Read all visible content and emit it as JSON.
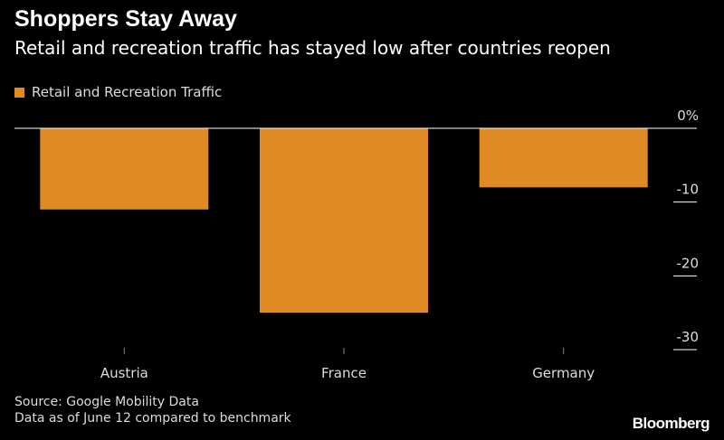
{
  "title": "Shoppers Stay Away",
  "subtitle": "Retail and recreation traffic has stayed low after countries reopen",
  "colors": {
    "bar": "#e08a24",
    "background": "#000000",
    "zero_line": "#ffffff",
    "tick_line": "#ffffff"
  },
  "chart_data": {
    "type": "bar",
    "categories": [
      "Austria",
      "France",
      "Germany"
    ],
    "series": [
      {
        "name": "Retail and Recreation Traffic",
        "values": [
          -11,
          -25,
          -8
        ]
      }
    ],
    "ylim": [
      -30,
      0
    ],
    "yticks": [
      0,
      -10,
      -20,
      -30
    ],
    "ytick_labels": [
      "0%",
      "-10",
      "-20",
      "-30"
    ],
    "xlabel": "",
    "ylabel": "",
    "legend_position": "top-left",
    "grid": false
  },
  "footer": {
    "source": "Source: Google Mobility Data",
    "note": "Data as of June 12 compared to benchmark"
  },
  "logo": "Bloomberg"
}
